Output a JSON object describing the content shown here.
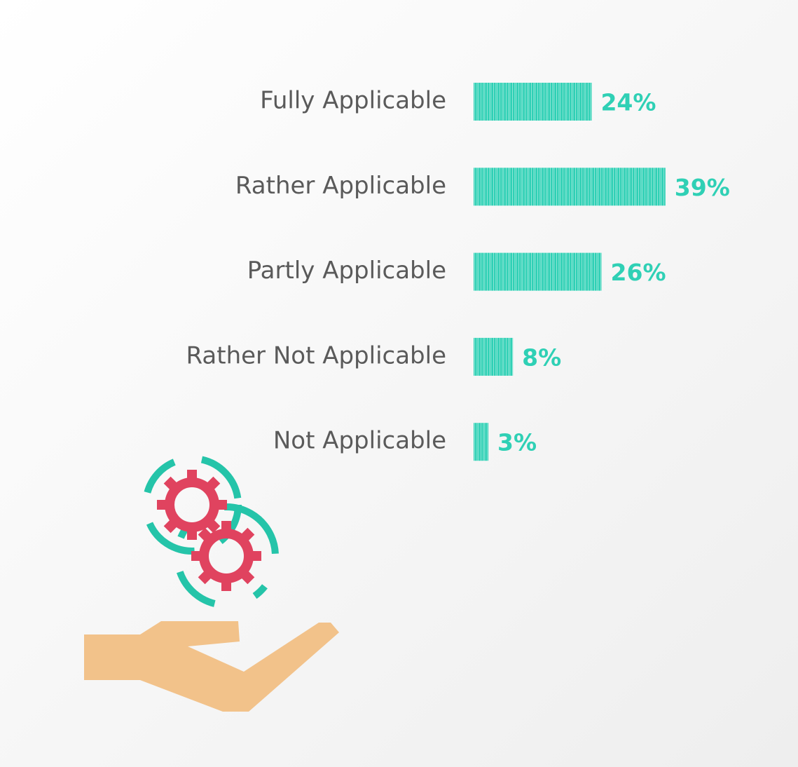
{
  "chart_data": {
    "type": "bar",
    "orientation": "horizontal",
    "categories": [
      "Fully Applicable",
      "Rather Applicable",
      "Partly Applicable",
      "Rather Not Applicable",
      "Not Applicable"
    ],
    "values": [
      24,
      39,
      26,
      8,
      3
    ],
    "value_labels": [
      "24%",
      "39%",
      "26%",
      "8%",
      "3%"
    ],
    "color": "#2fd0b5"
  }
}
